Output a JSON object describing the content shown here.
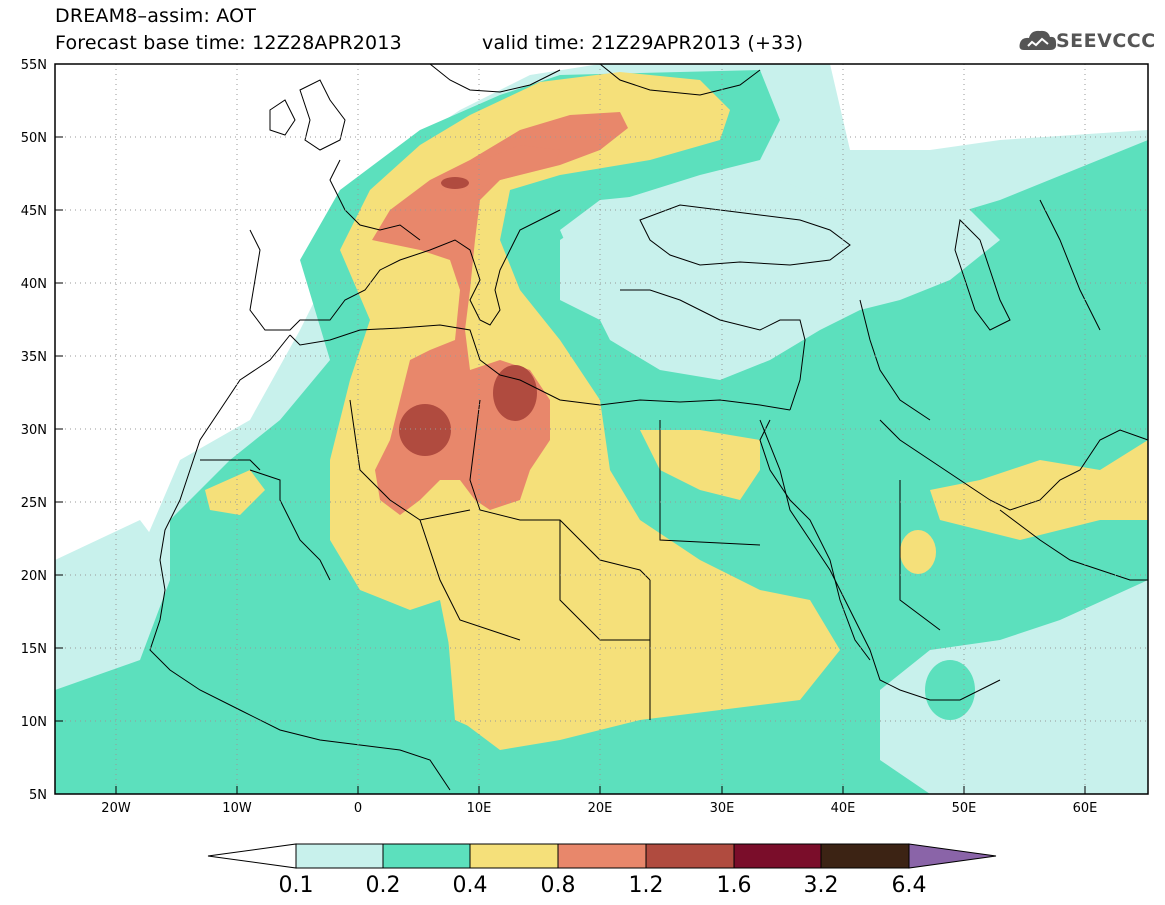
{
  "header": {
    "title_line1": "DREAM8–assim: AOT",
    "title_line2_left": "Forecast base time: 12Z28APR2013",
    "title_line2_right": "valid time: 21Z29APR2013 (+33)",
    "logo_text": "SEEVCCC"
  },
  "map": {
    "lon_labels": [
      "20W",
      "10W",
      "0",
      "10E",
      "20E",
      "30E",
      "40E",
      "50E",
      "60E"
    ],
    "lat_labels": [
      "55N",
      "50N",
      "45N",
      "40N",
      "35N",
      "30N",
      "25N",
      "20N",
      "15N",
      "10N",
      "5N"
    ],
    "lon_range": [
      -25,
      65
    ],
    "lat_range": [
      5,
      55
    ],
    "gridlines": true
  },
  "colorbar": {
    "labels": [
      "0.1",
      "0.2",
      "0.4",
      "0.8",
      "1.2",
      "1.6",
      "3.2",
      "6.4"
    ],
    "colors": [
      "#ffffff",
      "#c8f1ec",
      "#5ce0bd",
      "#f5e07a",
      "#e8876b",
      "#b04b3f",
      "#7a0d2a",
      "#3c2314",
      "#8a64a8"
    ]
  },
  "colors": {
    "level_0_1": "#c8f1ec",
    "level_0_2": "#5ce0bd",
    "level_0_4": "#f5e07a",
    "level_0_8": "#e8876b",
    "level_1_2": "#b04b3f"
  }
}
